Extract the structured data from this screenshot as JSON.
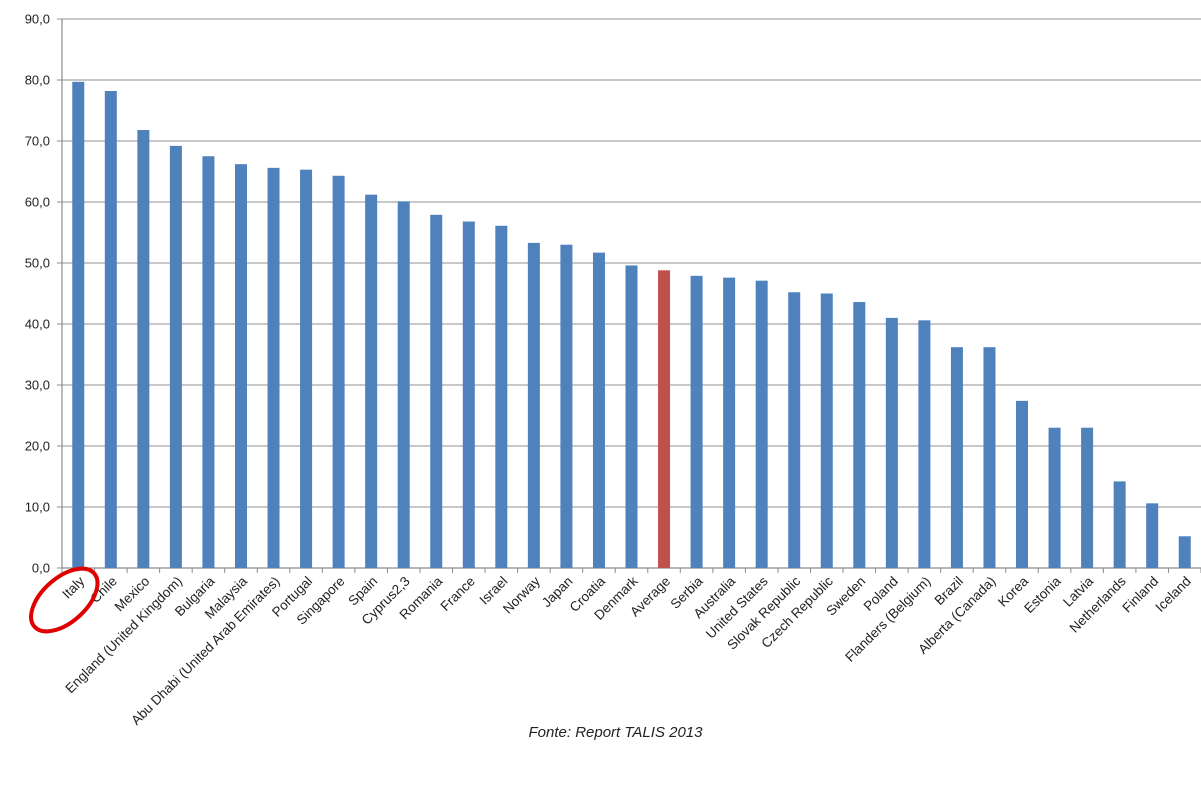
{
  "chart_data": {
    "type": "bar",
    "title": "",
    "xlabel": "",
    "ylabel": "",
    "ylim": [
      0,
      90
    ],
    "yticks": [
      "0,0",
      "10,0",
      "20,0",
      "30,0",
      "40,0",
      "50,0",
      "60,0",
      "70,0",
      "80,0",
      "90,0"
    ],
    "grid": true,
    "categories": [
      "Italy",
      "Chile",
      "Mexico",
      "England (United Kingdom)",
      "Bulgaria",
      "Malaysia",
      "Abu Dhabi (United Arab Emirates)",
      "Portugal",
      "Singapore",
      "Spain",
      "Cyprus2,3",
      "Romania",
      "France",
      "Israel",
      "Norway",
      "Japan",
      "Croatia",
      "Denmark",
      "Average",
      "Serbia",
      "Australia",
      "United States",
      "Slovak Republic",
      "Czech Republic",
      "Sweden",
      "Poland",
      "Flanders (Belgium)",
      "Brazil",
      "Alberta (Canada)",
      "Korea",
      "Estonia",
      "Latvia",
      "Netherlands",
      "Finland",
      "Iceland"
    ],
    "values": [
      79.7,
      78.2,
      71.8,
      69.2,
      67.5,
      66.2,
      65.6,
      65.3,
      64.3,
      61.2,
      60.1,
      57.9,
      56.8,
      56.1,
      53.3,
      53.0,
      51.7,
      49.6,
      48.8,
      47.9,
      47.6,
      47.1,
      45.2,
      45.0,
      43.6,
      41.0,
      40.6,
      36.2,
      36.2,
      27.4,
      23.0,
      23.0,
      14.2,
      10.6,
      5.2
    ],
    "highlight_category": "Average",
    "highlight_color": "#c0504d",
    "bar_color": "#4f81bd",
    "circled_category": "Italy",
    "circle_color": "#e00000"
  },
  "source_note": "Fonte: Report TALIS 2013"
}
